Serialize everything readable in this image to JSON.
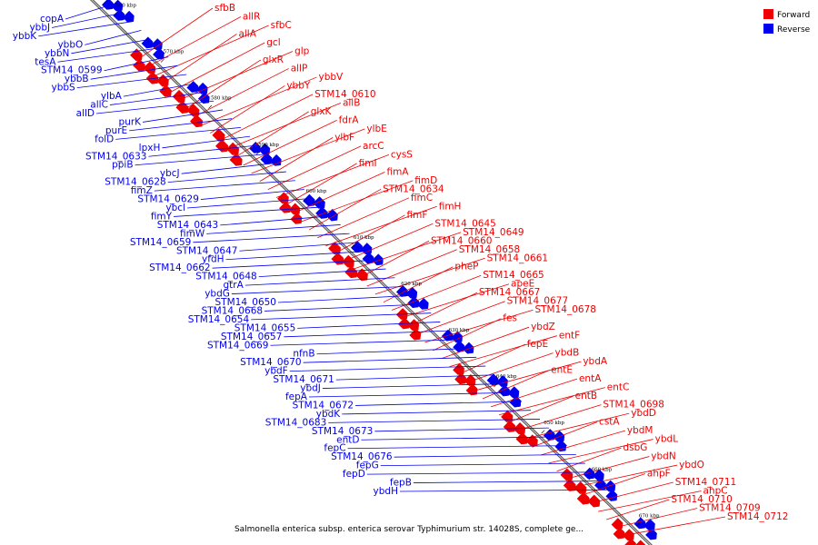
{
  "caption": "Salmonella enterica subsp. enterica serovar Typhimurium str. 14028S, complete ge...",
  "legend": [
    {
      "label": "Forward",
      "color": "#ee0000"
    },
    {
      "label": "Reverse",
      "color": "#0000ee"
    }
  ],
  "ticks": [
    "560 kbp",
    "570 kbp",
    "580 kbp",
    "590 kbp",
    "600 kbp",
    "610 kbp",
    "620 kbp",
    "630 kbp",
    "640 kbp",
    "650 kbp",
    "660 kbp",
    "670 kbp"
  ],
  "forward_labels": [
    "sfbB",
    "allR",
    "sfbC",
    "allA",
    "gcl",
    "glp",
    "glxR",
    "allP",
    "ybbV",
    "ybbY",
    "STM14_0610",
    "allB",
    "glxK",
    "fdrA",
    "ylbE",
    "ylbF",
    "arcC",
    "cysS",
    "fimI",
    "fimA",
    "fimD",
    "STM14_0634",
    "fimC",
    "fimH",
    "fimF",
    "STM14_0645",
    "STM14_0649",
    "STM14_0660",
    "STM14_0658",
    "STM14_0661",
    "pheP",
    "STM14_0665",
    "apeE",
    "STM14_0667",
    "STM14_0677",
    "STM14_0678",
    "fes",
    "ybdZ",
    "entF",
    "fepE",
    "ybdB",
    "ybdA",
    "entE",
    "entA",
    "entC",
    "entB",
    "STM14_0698",
    "ybdD",
    "cstA",
    "ybdM",
    "ybdL",
    "dsbG",
    "ybdN",
    "ybdO",
    "ahpF",
    "STM14_0711",
    "ahpC",
    "STM14_0710",
    "STM14_0709",
    "STM14_0712"
  ],
  "reverse_labels": [
    "copA",
    "ybbJ",
    "ybbK",
    "ybbO",
    "ybbN",
    "tesA",
    "STM14_0599",
    "ybbB",
    "ybbS",
    "ylbA",
    "allC",
    "allD",
    "purK",
    "purE",
    "folD",
    "lpxH",
    "STM14_0633",
    "ppiB",
    "ybcJ",
    "STM14_0628",
    "fimZ",
    "STM14_0629",
    "ybcl",
    "fimY",
    "STM14_0643",
    "fimW",
    "STM14_0659",
    "STM14_0647",
    "yfdH",
    "STM14_0662",
    "STM14_0648",
    "gtrA",
    "ybdG",
    "STM14_0650",
    "STM14_0668",
    "STM14_0654",
    "STM14_0655",
    "STM14_0657",
    "STM14_0669",
    "nfnB",
    "STM14_0670",
    "ybdF",
    "STM14_0671",
    "ybdJ",
    "fepA",
    "STM14_0672",
    "ybdK",
    "STM14_0683",
    "STM14_0673",
    "entD",
    "fepC",
    "STM14_0676",
    "fepG",
    "fepD",
    "fepB",
    "ybdH"
  ]
}
